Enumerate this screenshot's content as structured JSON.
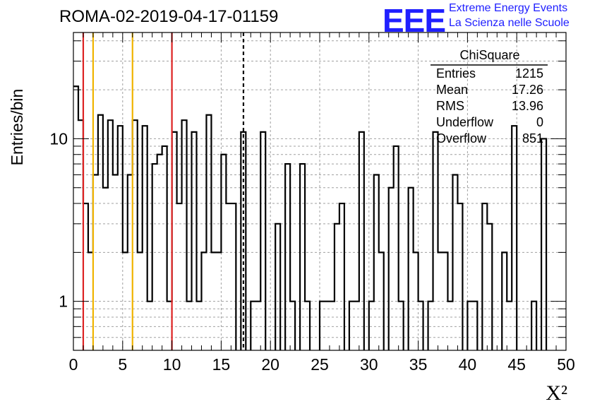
{
  "header": {
    "title": "ROMA-02-2019-04-17-01159",
    "logo_mark": "EEE",
    "logo_line1": "Extreme Energy Events",
    "logo_line2": "La Scienza nelle Scuole"
  },
  "colors": {
    "histogram": "#000000",
    "red_line": "#dd2222",
    "yellow_line": "#f0b400",
    "grid": "#a0a0a0",
    "logo": "#2020ff"
  },
  "stats": {
    "title": "ChiSquare",
    "rows": [
      {
        "label": "Entries",
        "value": "1215"
      },
      {
        "label": "Mean",
        "value": "17.26"
      },
      {
        "label": "RMS",
        "value": "13.96"
      },
      {
        "label": "Underflow",
        "value": "0"
      },
      {
        "label": "Overflow",
        "value": "851"
      }
    ]
  },
  "chart_data": {
    "type": "histogram",
    "xlabel": "X²",
    "ylabel": "Entries/bin",
    "xlim": [
      0,
      50
    ],
    "ylim": [
      0.5,
      45
    ],
    "yscale": "log",
    "grid": true,
    "stats_box": "top-right",
    "bin_width": 0.5,
    "x_ticks": [
      0,
      5,
      10,
      15,
      20,
      25,
      30,
      35,
      40,
      45,
      50
    ],
    "y_ticks": [
      1,
      10
    ],
    "values": [
      21,
      13,
      4,
      2,
      6,
      14,
      5,
      13,
      6,
      12,
      2,
      6,
      13,
      2,
      12,
      1,
      7,
      8,
      9,
      1,
      11,
      4,
      13,
      1,
      11,
      1,
      2,
      14,
      2,
      2,
      8,
      4,
      4,
      0,
      11,
      0,
      1,
      1,
      11,
      0,
      0,
      3,
      0,
      7,
      1,
      0,
      7,
      1,
      0,
      0,
      1,
      1,
      1,
      3,
      4,
      0,
      1,
      1,
      11,
      0,
      1,
      6,
      2,
      0,
      5,
      9,
      1,
      0,
      5,
      2,
      1,
      0,
      1,
      11,
      2,
      2,
      1,
      6,
      4,
      0,
      1,
      1,
      0,
      4,
      3,
      0,
      0,
      2,
      1,
      12,
      0,
      0,
      0,
      1,
      0,
      10,
      0,
      0,
      0,
      0,
      0,
      1,
      1,
      11,
      0,
      2,
      0,
      0,
      1,
      2,
      0,
      0,
      0,
      0,
      0,
      0,
      0,
      0,
      0,
      0,
      0,
      0,
      0,
      0,
      0,
      0,
      0,
      0,
      0,
      0,
      0,
      0,
      0,
      0,
      0,
      0,
      0,
      0,
      0,
      0,
      0,
      0,
      0,
      0,
      0,
      0,
      0,
      0,
      0,
      0,
      0,
      0,
      0,
      0,
      0,
      0,
      0,
      0,
      0,
      0,
      0,
      0,
      0,
      0,
      0,
      0,
      0,
      0,
      0,
      0,
      0,
      0,
      0,
      0,
      0,
      0,
      0,
      0,
      0,
      0,
      0,
      0,
      0,
      0,
      0,
      0,
      0,
      0,
      0,
      0,
      0,
      0,
      0,
      0,
      0,
      0,
      0,
      0,
      0,
      0
    ],
    "vertical_lines": [
      {
        "x": 1,
        "color": "red"
      },
      {
        "x": 2,
        "color": "yellow"
      },
      {
        "x": 6,
        "color": "yellow"
      },
      {
        "x": 10,
        "color": "red"
      },
      {
        "x": 17.26,
        "color": "black",
        "dashed": true
      }
    ]
  }
}
